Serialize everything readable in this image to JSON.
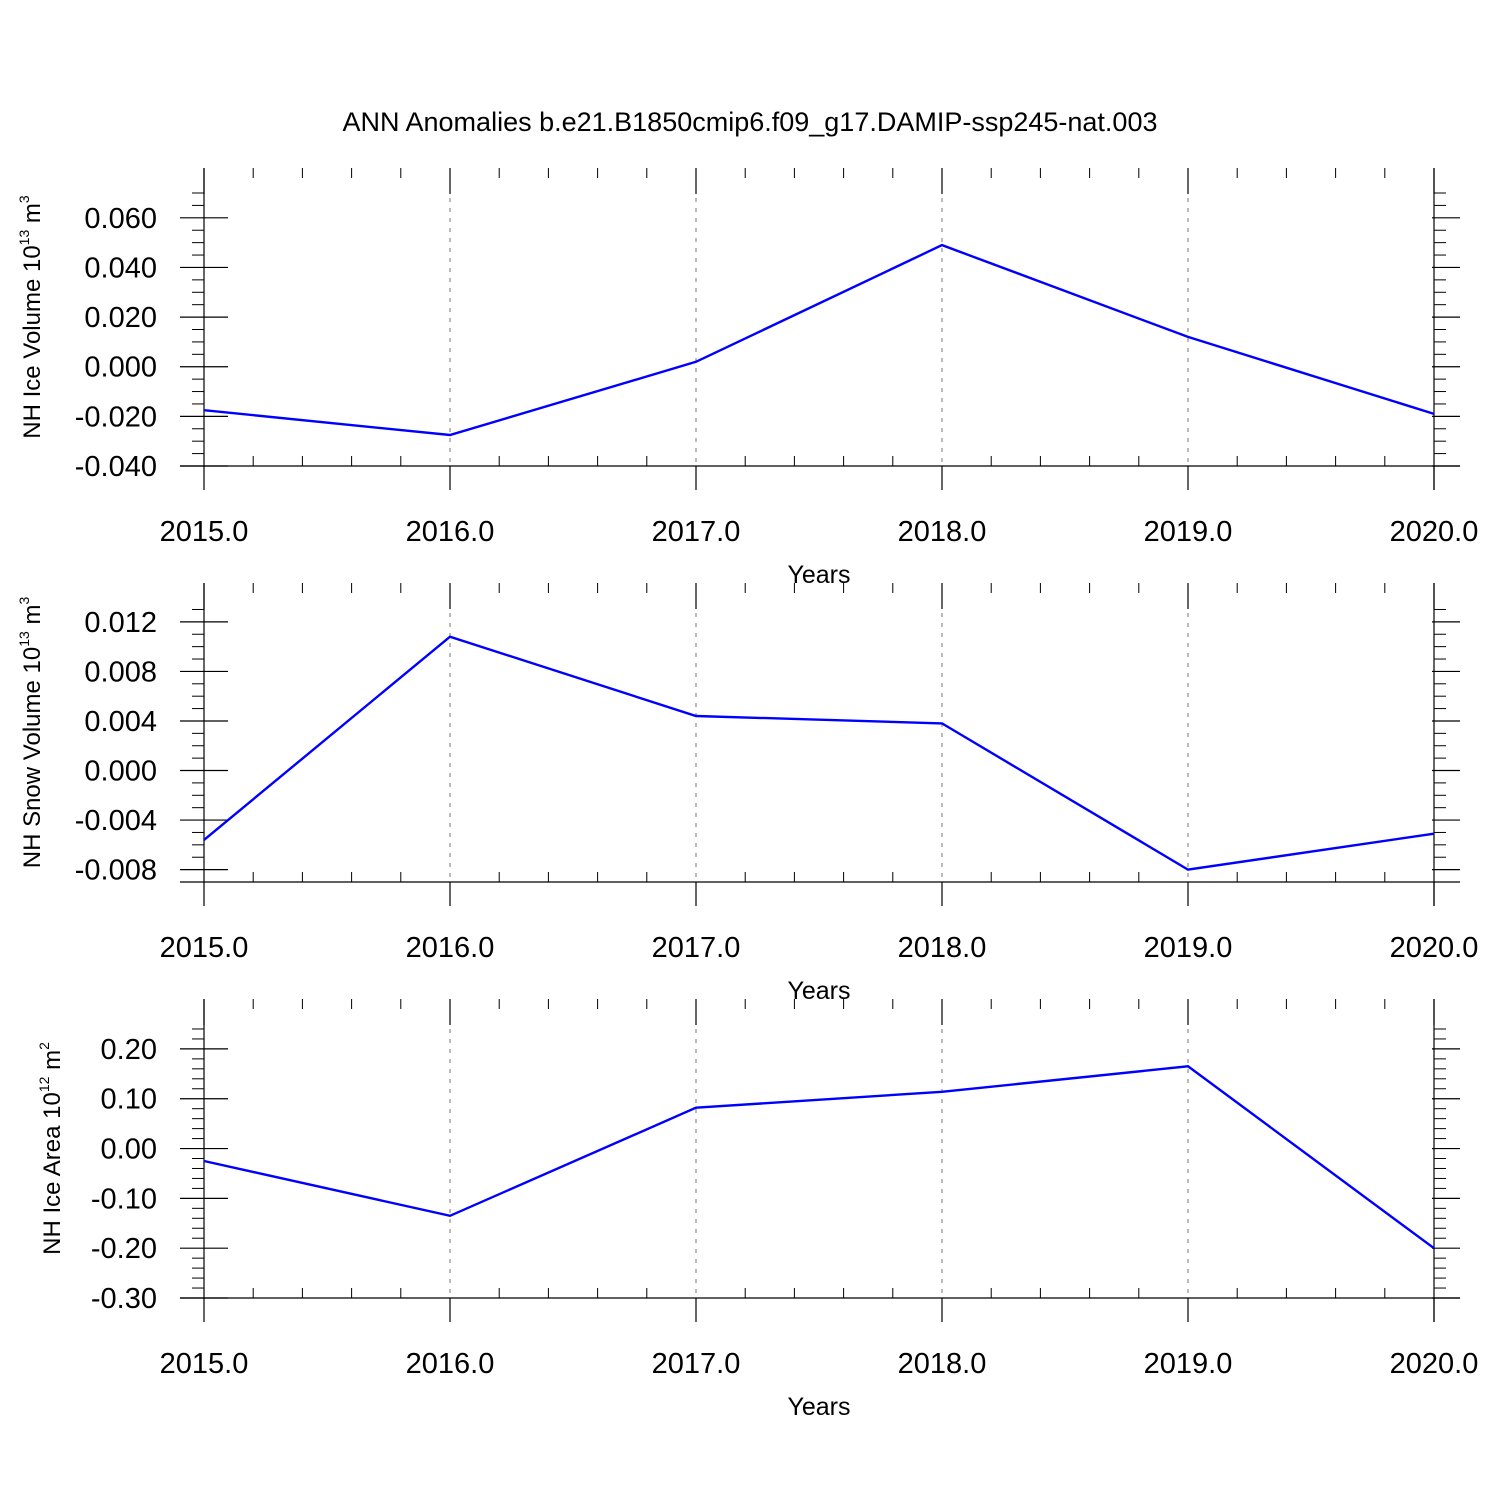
{
  "figure": {
    "title": "ANN Anomalies b.e21.B1850cmip6.f09_g17.DAMIP-ssp245-nat.003"
  },
  "chart_data": [
    {
      "type": "line",
      "ylabel": {
        "text": "NH Ice Volume 10",
        "exp": "13",
        "unit": " m",
        "unit_exp": "3"
      },
      "xlabel": "Years",
      "xlim": [
        2015,
        2020
      ],
      "ylim": [
        -0.04,
        0.07
      ],
      "x_ticks": [
        "2015.0",
        "2016.0",
        "2017.0",
        "2018.0",
        "2019.0",
        "2020.0"
      ],
      "y_ticks": [
        {
          "value": 0.06,
          "label": "0.060"
        },
        {
          "value": 0.04,
          "label": "0.040"
        },
        {
          "value": 0.02,
          "label": "0.020"
        },
        {
          "value": 0.0,
          "label": "0.000"
        },
        {
          "value": -0.02,
          "label": "-0.020"
        },
        {
          "value": -0.04,
          "label": "-0.040"
        }
      ],
      "y_minor_step": 0.005,
      "grid": "vertical-dashed",
      "line_color": "#0000ff",
      "x": [
        2015,
        2016,
        2017,
        2018,
        2019,
        2020
      ],
      "y": [
        -0.0175,
        -0.0275,
        0.002,
        0.049,
        0.012,
        -0.019
      ]
    },
    {
      "type": "line",
      "ylabel": {
        "text": "NH Snow Volume 10",
        "exp": "13",
        "unit": " m",
        "unit_exp": "3"
      },
      "xlabel": "Years",
      "xlim": [
        2015,
        2020
      ],
      "ylim": [
        -0.009,
        0.0132
      ],
      "x_ticks": [
        "2015.0",
        "2016.0",
        "2017.0",
        "2018.0",
        "2019.0",
        "2020.0"
      ],
      "y_ticks": [
        {
          "value": 0.012,
          "label": "0.012"
        },
        {
          "value": 0.008,
          "label": "0.008"
        },
        {
          "value": 0.004,
          "label": "0.004"
        },
        {
          "value": 0.0,
          "label": "0.000"
        },
        {
          "value": -0.004,
          "label": "-0.004"
        },
        {
          "value": -0.008,
          "label": "-0.008"
        }
      ],
      "y_minor_step": 0.001,
      "grid": "vertical-dashed",
      "line_color": "#0000ff",
      "x": [
        2015,
        2016,
        2017,
        2018,
        2019,
        2020
      ],
      "y": [
        -0.0056,
        0.0108,
        0.0044,
        0.0038,
        -0.008,
        -0.0051
      ]
    },
    {
      "type": "line",
      "ylabel": {
        "text": "NH Ice Area 10",
        "exp": "12",
        "unit": " m",
        "unit_exp": "2"
      },
      "xlabel": "Years",
      "xlim": [
        2015,
        2020
      ],
      "ylim": [
        -0.3,
        0.25
      ],
      "x_ticks": [
        "2015.0",
        "2016.0",
        "2017.0",
        "2018.0",
        "2019.0",
        "2020.0"
      ],
      "y_ticks": [
        {
          "value": 0.2,
          "label": "0.20"
        },
        {
          "value": 0.1,
          "label": "0.10"
        },
        {
          "value": 0.0,
          "label": "0.00"
        },
        {
          "value": -0.1,
          "label": "-0.10"
        },
        {
          "value": -0.2,
          "label": "-0.20"
        },
        {
          "value": -0.3,
          "label": "-0.30"
        }
      ],
      "y_minor_step": 0.02,
      "grid": "vertical-dashed",
      "line_color": "#0000ff",
      "x": [
        2015,
        2016,
        2017,
        2018,
        2019,
        2020
      ],
      "y": [
        -0.025,
        -0.135,
        0.082,
        0.114,
        0.165,
        -0.2
      ]
    }
  ]
}
